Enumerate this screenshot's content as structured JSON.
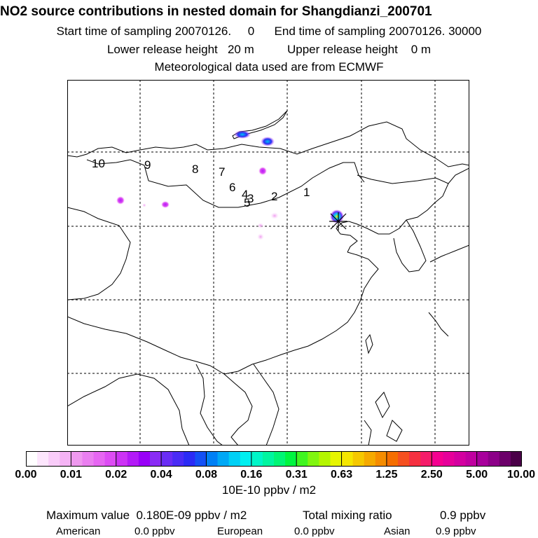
{
  "header": {
    "title": "NO2 source contributions in nested domain for Shangdianzi_200701",
    "start_label": "Start time of sampling 20070126.     0",
    "end_label": "End time of sampling 20070126. 30000",
    "lower_label": "Lower release height   20 m",
    "upper_label": "Upper release height    0 m",
    "met_label": "Meteorological data used are from ECMWF"
  },
  "map": {
    "region_labels": [
      "1",
      "2",
      "3",
      "4",
      "5",
      "6",
      "7",
      "8",
      "9",
      "10"
    ]
  },
  "colorbar": {
    "ticks": [
      "0.00",
      "0.01",
      "0.02",
      "0.04",
      "0.08",
      "0.16",
      "0.31",
      "0.63",
      "1.25",
      "2.50",
      "5.00",
      "10.00"
    ],
    "units": "10E-10 ppbv / m2",
    "colors": [
      "#ffffff",
      "#fde6fd",
      "#f9ccf9",
      "#f5b3f5",
      "#ef99ef",
      "#ea7ff0",
      "#e666f2",
      "#dd4cf4",
      "#cc33f5",
      "#b31af7",
      "#9900f8",
      "#8a2cf5",
      "#6a2df5",
      "#4a2cf5",
      "#2b2bf5",
      "#1450f5",
      "#0080f5",
      "#00a8f5",
      "#00d0f5",
      "#00f0f0",
      "#00f5c8",
      "#00f5a0",
      "#00f575",
      "#00f540",
      "#40f520",
      "#80f510",
      "#b4f500",
      "#e6f500",
      "#f5e600",
      "#f5c800",
      "#f5aa00",
      "#f58c00",
      "#f56e00",
      "#f55020",
      "#f53040",
      "#f51c6a",
      "#f50090",
      "#e6009a",
      "#d400a0",
      "#c000a0",
      "#a8009c",
      "#8c0088",
      "#6c006a",
      "#4a0048"
    ]
  },
  "footer": {
    "max_label": "Maximum value  0.180E-09 ppbv / m2",
    "total_label": "Total mixing ratio",
    "total_value": "0.9 ppbv",
    "american_label": "American",
    "american_value": "0.0 ppbv",
    "european_label": "European",
    "european_value": "0.0 ppbv",
    "asian_label": "Asian",
    "asian_value": "0.9 ppbv"
  }
}
